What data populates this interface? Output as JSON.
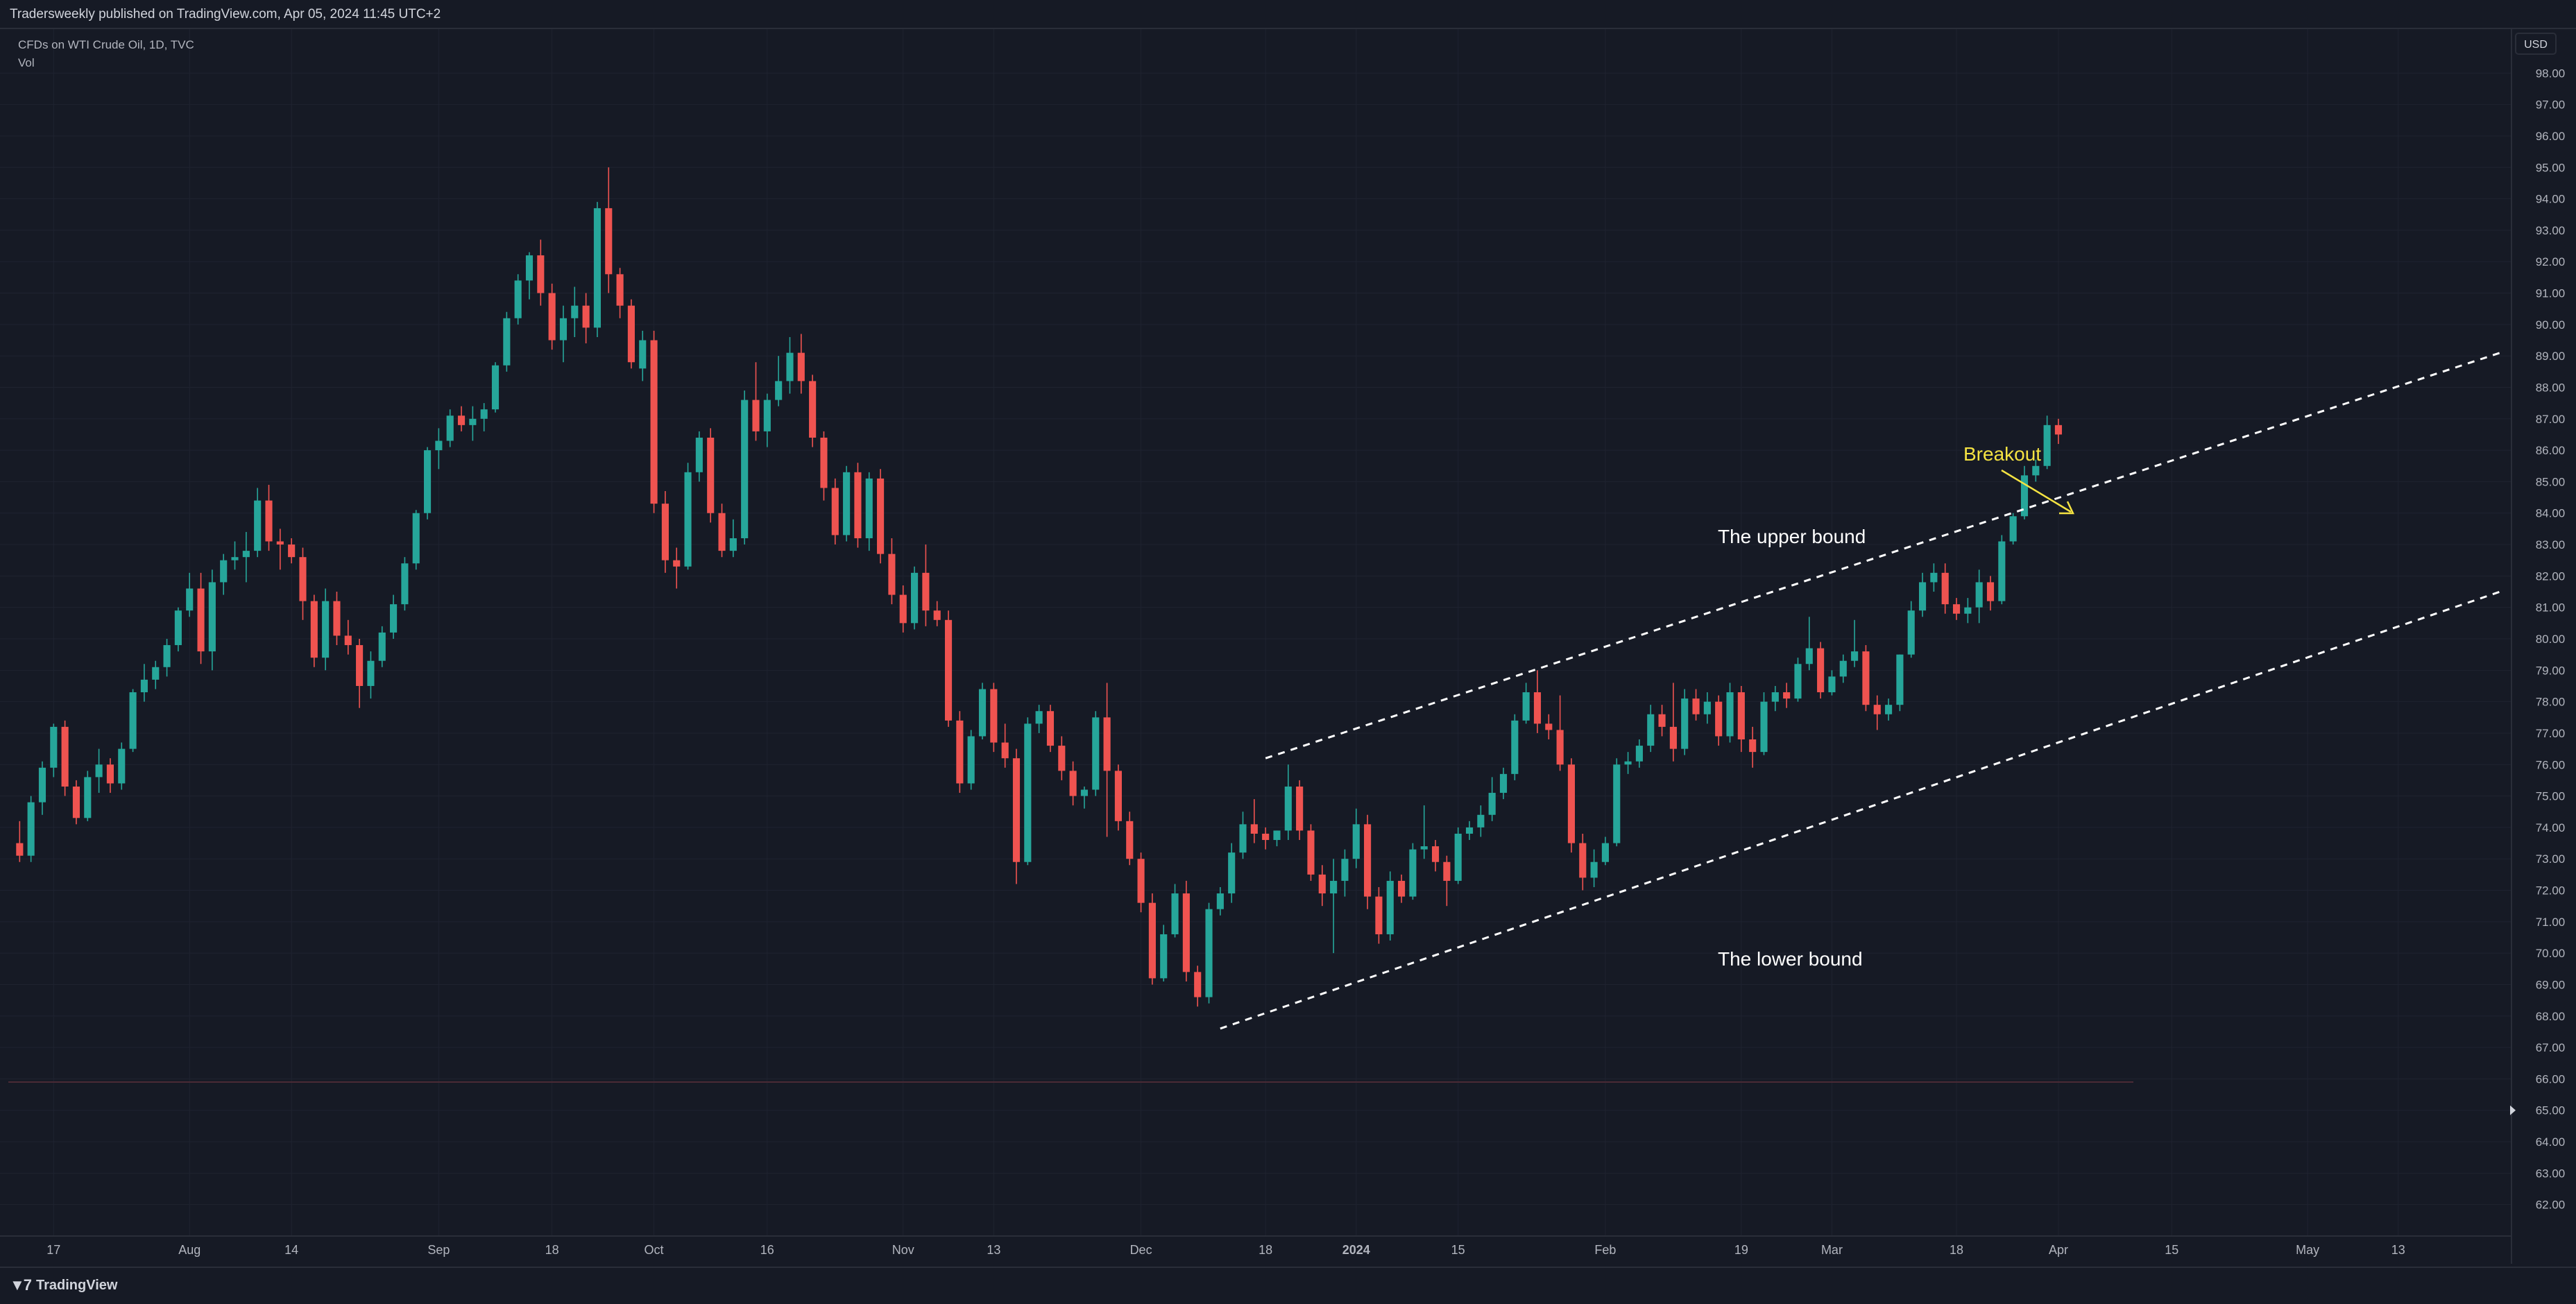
{
  "header": {
    "publisher": "Tradersweekly published on TradingView.com, Apr 05, 2024 11:45 UTC+2"
  },
  "legend": {
    "symbol": "CFDs on WTI Crude Oil, 1D, TVC",
    "indicator": "Vol"
  },
  "footer": {
    "logo_text": "TradingView"
  },
  "currency_badge": "USD",
  "colors": {
    "background": "#161a25",
    "up": "#26a69a",
    "down": "#ef5350",
    "grid": "#1f2330",
    "axis_text": "#b2b5be",
    "annotation_yellow": "#f5e342",
    "trendline": "#ffffff"
  },
  "annotations": {
    "breakout": "Breakout",
    "upper": "The upper bound",
    "lower": "The lower bound"
  },
  "chart_data": {
    "type": "candlestick",
    "title": "CFDs on WTI Crude Oil, 1D, TVC",
    "ylim": [
      61,
      99
    ],
    "y_ticks": [
      "62.00",
      "63.00",
      "64.00",
      "65.00",
      "66.00",
      "67.00",
      "68.00",
      "69.00",
      "70.00",
      "71.00",
      "72.00",
      "73.00",
      "74.00",
      "75.00",
      "76.00",
      "77.00",
      "78.00",
      "79.00",
      "80.00",
      "81.00",
      "82.00",
      "83.00",
      "84.00",
      "85.00",
      "86.00",
      "87.00",
      "88.00",
      "89.00",
      "90.00",
      "91.00",
      "92.00",
      "93.00",
      "94.00",
      "95.00",
      "96.00",
      "97.00",
      "98.00"
    ],
    "x_ticks": [
      {
        "label": "17",
        "idx": 3
      },
      {
        "label": "Aug",
        "idx": 15
      },
      {
        "label": "14",
        "idx": 24
      },
      {
        "label": "Sep",
        "idx": 37
      },
      {
        "label": "18",
        "idx": 47
      },
      {
        "label": "Oct",
        "idx": 56
      },
      {
        "label": "16",
        "idx": 66
      },
      {
        "label": "Nov",
        "idx": 78
      },
      {
        "label": "13",
        "idx": 86
      },
      {
        "label": "Dec",
        "idx": 99
      },
      {
        "label": "18",
        "idx": 110
      },
      {
        "label": "2024",
        "idx": 118
      },
      {
        "label": "15",
        "idx": 127
      },
      {
        "label": "Feb",
        "idx": 140
      },
      {
        "label": "19",
        "idx": 152
      },
      {
        "label": "Mar",
        "idx": 160
      },
      {
        "label": "18",
        "idx": 171
      },
      {
        "label": "Apr",
        "idx": 180
      },
      {
        "label": "15",
        "idx": 190
      },
      {
        "label": "May",
        "idx": 202
      },
      {
        "label": "13",
        "idx": 210
      }
    ],
    "x_range": [
      -1,
      220
    ],
    "ohlc": [
      [
        73.5,
        74.2,
        72.9,
        73.1
      ],
      [
        73.1,
        75.0,
        72.9,
        74.8
      ],
      [
        74.8,
        76.1,
        74.4,
        75.9
      ],
      [
        75.9,
        77.3,
        75.6,
        77.2
      ],
      [
        77.2,
        77.4,
        75.0,
        75.3
      ],
      [
        75.3,
        75.5,
        74.1,
        74.3
      ],
      [
        74.3,
        75.8,
        74.2,
        75.6
      ],
      [
        75.6,
        76.5,
        75.1,
        76.0
      ],
      [
        76.0,
        76.2,
        75.1,
        75.4
      ],
      [
        75.4,
        76.7,
        75.2,
        76.5
      ],
      [
        76.5,
        78.4,
        76.4,
        78.3
      ],
      [
        78.3,
        79.2,
        78.0,
        78.7
      ],
      [
        78.7,
        79.3,
        78.4,
        79.1
      ],
      [
        79.1,
        80.0,
        78.8,
        79.8
      ],
      [
        79.8,
        81.0,
        79.6,
        80.9
      ],
      [
        80.9,
        82.1,
        80.7,
        81.6
      ],
      [
        81.6,
        82.1,
        79.2,
        79.6
      ],
      [
        79.6,
        82.2,
        79.0,
        81.8
      ],
      [
        81.8,
        82.7,
        81.4,
        82.5
      ],
      [
        82.5,
        83.1,
        82.2,
        82.6
      ],
      [
        82.6,
        83.4,
        81.8,
        82.8
      ],
      [
        82.8,
        84.8,
        82.6,
        84.4
      ],
      [
        84.4,
        84.9,
        82.8,
        83.1
      ],
      [
        83.1,
        83.5,
        82.2,
        83.0
      ],
      [
        83.0,
        83.2,
        82.4,
        82.6
      ],
      [
        82.6,
        82.9,
        80.6,
        81.2
      ],
      [
        81.2,
        81.4,
        79.1,
        79.4
      ],
      [
        79.4,
        81.6,
        79.0,
        81.2
      ],
      [
        81.2,
        81.5,
        79.8,
        80.1
      ],
      [
        80.1,
        80.6,
        79.5,
        79.8
      ],
      [
        79.8,
        80.0,
        77.8,
        78.5
      ],
      [
        78.5,
        79.6,
        78.1,
        79.3
      ],
      [
        79.3,
        80.4,
        79.1,
        80.2
      ],
      [
        80.2,
        81.4,
        80.0,
        81.1
      ],
      [
        81.1,
        82.6,
        80.9,
        82.4
      ],
      [
        82.4,
        84.1,
        82.2,
        84.0
      ],
      [
        84.0,
        86.1,
        83.8,
        86.0
      ],
      [
        86.0,
        86.7,
        85.4,
        86.3
      ],
      [
        86.3,
        87.3,
        86.1,
        87.1
      ],
      [
        87.1,
        87.4,
        86.6,
        86.8
      ],
      [
        86.8,
        87.4,
        86.3,
        87.0
      ],
      [
        87.0,
        87.5,
        86.6,
        87.3
      ],
      [
        87.3,
        88.8,
        87.2,
        88.7
      ],
      [
        88.7,
        90.4,
        88.5,
        90.2
      ],
      [
        90.2,
        91.6,
        90.0,
        91.4
      ],
      [
        91.4,
        92.3,
        90.8,
        92.2
      ],
      [
        92.2,
        92.7,
        90.6,
        91.0
      ],
      [
        91.0,
        91.3,
        89.2,
        89.5
      ],
      [
        89.5,
        90.6,
        88.8,
        90.2
      ],
      [
        90.2,
        91.2,
        89.6,
        90.6
      ],
      [
        90.6,
        91.0,
        89.4,
        89.9
      ],
      [
        89.9,
        93.9,
        89.6,
        93.7
      ],
      [
        93.7,
        95.0,
        91.0,
        91.6
      ],
      [
        91.6,
        91.8,
        90.2,
        90.6
      ],
      [
        90.6,
        90.8,
        88.6,
        88.8
      ],
      [
        88.6,
        89.8,
        88.2,
        89.5
      ],
      [
        89.5,
        89.8,
        84.0,
        84.3
      ],
      [
        84.3,
        84.7,
        82.1,
        82.5
      ],
      [
        82.5,
        82.9,
        81.6,
        82.3
      ],
      [
        82.3,
        85.6,
        82.2,
        85.3
      ],
      [
        85.3,
        86.6,
        85.0,
        86.4
      ],
      [
        86.4,
        86.7,
        83.7,
        84.0
      ],
      [
        84.0,
        84.3,
        82.6,
        82.8
      ],
      [
        82.8,
        83.8,
        82.6,
        83.2
      ],
      [
        83.2,
        87.9,
        83.0,
        87.6
      ],
      [
        87.6,
        88.8,
        86.3,
        86.6
      ],
      [
        86.6,
        87.8,
        86.1,
        87.6
      ],
      [
        87.6,
        89.0,
        87.4,
        88.2
      ],
      [
        88.2,
        89.6,
        87.8,
        89.1
      ],
      [
        89.1,
        89.7,
        87.8,
        88.2
      ],
      [
        88.2,
        88.4,
        86.1,
        86.4
      ],
      [
        86.4,
        86.6,
        84.4,
        84.8
      ],
      [
        84.8,
        85.1,
        83.0,
        83.3
      ],
      [
        83.3,
        85.5,
        83.1,
        85.3
      ],
      [
        85.3,
        85.6,
        82.9,
        83.2
      ],
      [
        83.2,
        85.3,
        82.8,
        85.1
      ],
      [
        85.1,
        85.4,
        82.4,
        82.7
      ],
      [
        82.7,
        83.2,
        81.1,
        81.4
      ],
      [
        81.4,
        81.7,
        80.2,
        80.5
      ],
      [
        80.5,
        82.3,
        80.3,
        82.1
      ],
      [
        82.1,
        83.0,
        80.4,
        80.9
      ],
      [
        80.9,
        81.2,
        80.4,
        80.6
      ],
      [
        80.6,
        80.9,
        77.2,
        77.4
      ],
      [
        77.4,
        77.7,
        75.1,
        75.4
      ],
      [
        75.4,
        77.1,
        75.2,
        76.9
      ],
      [
        76.9,
        78.6,
        76.8,
        78.4
      ],
      [
        78.4,
        78.6,
        76.4,
        76.7
      ],
      [
        76.7,
        77.3,
        75.9,
        76.2
      ],
      [
        76.2,
        76.5,
        72.2,
        72.9
      ],
      [
        72.9,
        77.5,
        72.8,
        77.3
      ],
      [
        77.3,
        77.9,
        77.0,
        77.7
      ],
      [
        77.7,
        77.9,
        76.4,
        76.6
      ],
      [
        76.6,
        76.9,
        75.5,
        75.8
      ],
      [
        75.8,
        76.1,
        74.7,
        75.0
      ],
      [
        75.0,
        75.3,
        74.6,
        75.2
      ],
      [
        75.2,
        77.7,
        75.0,
        77.5
      ],
      [
        77.5,
        78.6,
        73.7,
        75.8
      ],
      [
        75.8,
        76.0,
        73.9,
        74.2
      ],
      [
        74.2,
        74.5,
        72.8,
        73.0
      ],
      [
        73.0,
        73.2,
        71.3,
        71.6
      ],
      [
        71.6,
        71.9,
        69.0,
        69.2
      ],
      [
        69.2,
        70.9,
        69.1,
        70.6
      ],
      [
        70.6,
        72.2,
        70.5,
        71.9
      ],
      [
        71.9,
        72.3,
        69.1,
        69.4
      ],
      [
        69.4,
        69.6,
        68.3,
        68.6
      ],
      [
        68.6,
        71.6,
        68.4,
        71.4
      ],
      [
        71.4,
        72.1,
        71.2,
        71.9
      ],
      [
        71.9,
        73.5,
        71.6,
        73.2
      ],
      [
        73.2,
        74.5,
        73.0,
        74.1
      ],
      [
        74.1,
        74.9,
        73.5,
        73.8
      ],
      [
        73.8,
        74.0,
        73.3,
        73.6
      ],
      [
        73.6,
        73.9,
        73.4,
        73.9
      ],
      [
        73.9,
        76.0,
        73.6,
        75.3
      ],
      [
        75.3,
        75.5,
        73.6,
        73.9
      ],
      [
        73.9,
        74.1,
        72.3,
        72.5
      ],
      [
        72.5,
        72.8,
        71.5,
        71.9
      ],
      [
        71.9,
        73.0,
        70.0,
        72.3
      ],
      [
        72.3,
        73.3,
        71.8,
        73.0
      ],
      [
        73.0,
        74.6,
        72.7,
        74.1
      ],
      [
        74.1,
        74.4,
        71.4,
        71.8
      ],
      [
        71.8,
        72.1,
        70.3,
        70.6
      ],
      [
        70.6,
        72.6,
        70.4,
        72.3
      ],
      [
        72.3,
        72.5,
        71.6,
        71.8
      ],
      [
        71.8,
        73.5,
        71.7,
        73.3
      ],
      [
        73.3,
        74.7,
        73.0,
        73.4
      ],
      [
        73.4,
        73.6,
        72.6,
        72.9
      ],
      [
        72.9,
        73.1,
        71.5,
        72.3
      ],
      [
        72.3,
        74.0,
        72.2,
        73.8
      ],
      [
        73.8,
        74.2,
        73.6,
        74.0
      ],
      [
        74.0,
        74.7,
        73.7,
        74.4
      ],
      [
        74.4,
        75.6,
        74.2,
        75.1
      ],
      [
        75.1,
        75.9,
        74.9,
        75.7
      ],
      [
        75.7,
        77.6,
        75.5,
        77.4
      ],
      [
        77.4,
        78.6,
        77.3,
        78.3
      ],
      [
        78.3,
        79.0,
        77.0,
        77.3
      ],
      [
        77.3,
        77.6,
        76.8,
        77.1
      ],
      [
        77.1,
        78.2,
        75.8,
        76.0
      ],
      [
        76.0,
        76.2,
        73.2,
        73.5
      ],
      [
        73.5,
        73.8,
        72.0,
        72.4
      ],
      [
        72.4,
        73.3,
        72.1,
        72.9
      ],
      [
        72.9,
        73.7,
        72.8,
        73.5
      ],
      [
        73.5,
        76.2,
        73.4,
        76.0
      ],
      [
        76.0,
        76.4,
        75.7,
        76.1
      ],
      [
        76.1,
        76.8,
        75.9,
        76.6
      ],
      [
        76.6,
        77.9,
        76.4,
        77.6
      ],
      [
        77.6,
        77.9,
        76.9,
        77.2
      ],
      [
        77.2,
        78.6,
        76.1,
        76.5
      ],
      [
        76.5,
        78.4,
        76.3,
        78.1
      ],
      [
        78.1,
        78.4,
        77.4,
        77.6
      ],
      [
        77.6,
        78.3,
        77.3,
        78.0
      ],
      [
        78.0,
        78.2,
        76.6,
        76.9
      ],
      [
        76.9,
        78.6,
        76.7,
        78.3
      ],
      [
        78.3,
        78.5,
        76.4,
        76.8
      ],
      [
        76.8,
        77.2,
        75.9,
        76.4
      ],
      [
        76.4,
        78.3,
        76.3,
        78.0
      ],
      [
        78.0,
        78.5,
        77.7,
        78.3
      ],
      [
        78.3,
        78.6,
        77.8,
        78.1
      ],
      [
        78.1,
        79.4,
        78.0,
        79.2
      ],
      [
        79.2,
        80.7,
        79.0,
        79.7
      ],
      [
        79.7,
        79.9,
        78.1,
        78.3
      ],
      [
        78.3,
        79.0,
        78.2,
        78.8
      ],
      [
        78.8,
        79.5,
        78.6,
        79.3
      ],
      [
        79.3,
        80.6,
        79.1,
        79.6
      ],
      [
        79.6,
        79.8,
        77.7,
        77.9
      ],
      [
        77.9,
        78.2,
        77.1,
        77.6
      ],
      [
        77.6,
        78.1,
        77.4,
        77.9
      ],
      [
        77.9,
        79.5,
        77.7,
        79.5
      ],
      [
        79.5,
        81.2,
        79.4,
        80.9
      ],
      [
        80.9,
        82.1,
        80.7,
        81.8
      ],
      [
        81.8,
        82.4,
        81.5,
        82.1
      ],
      [
        82.1,
        82.4,
        80.8,
        81.1
      ],
      [
        81.1,
        81.3,
        80.6,
        80.8
      ],
      [
        80.8,
        81.3,
        80.5,
        81.0
      ],
      [
        81.0,
        82.2,
        80.5,
        81.8
      ],
      [
        81.8,
        82.0,
        80.9,
        81.2
      ],
      [
        81.2,
        83.3,
        81.1,
        83.1
      ],
      [
        83.1,
        84.0,
        83.0,
        83.9
      ],
      [
        83.9,
        85.5,
        83.8,
        85.2
      ],
      [
        85.2,
        85.7,
        85.0,
        85.5
      ],
      [
        85.5,
        87.1,
        85.4,
        86.8
      ],
      [
        86.8,
        87.0,
        86.2,
        86.5
      ]
    ],
    "trendlines": [
      {
        "name": "upper",
        "x1": 110,
        "y1": 76.2,
        "x2": 219,
        "y2": 89.1
      },
      {
        "name": "lower",
        "x1": 106,
        "y1": 67.6,
        "x2": 219,
        "y2": 81.5
      }
    ],
    "horizontal_line": {
      "value": 65.9,
      "color": "#4a2a35"
    },
    "last_marker_price": 65.0
  }
}
